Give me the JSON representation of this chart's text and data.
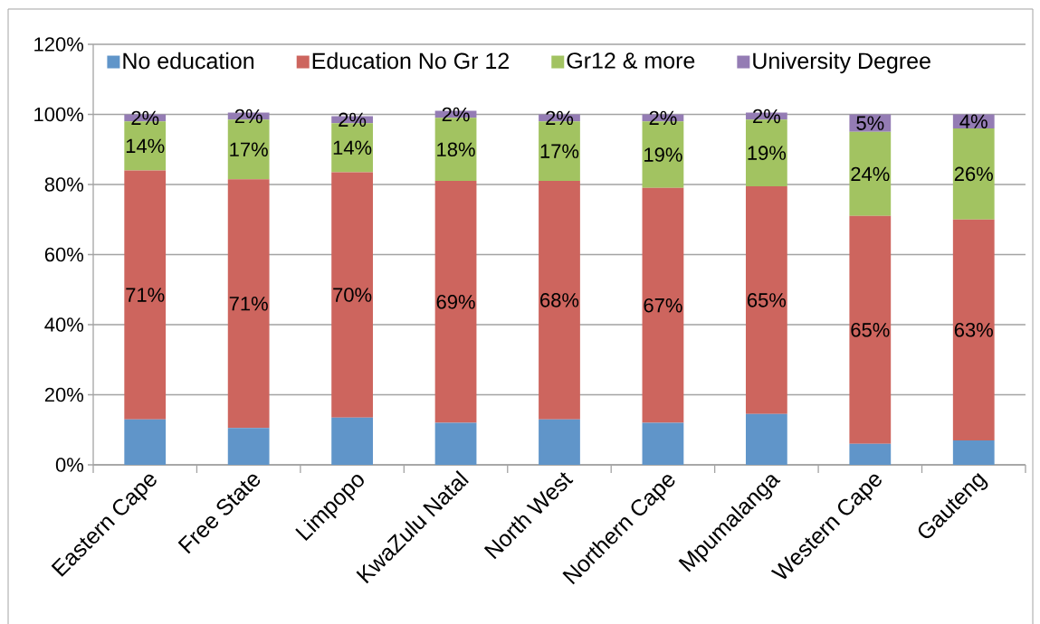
{
  "chart_data": {
    "type": "bar",
    "stacked": true,
    "categories": [
      "Eastern Cape",
      "Free State",
      "Limpopo",
      "KwaZulu Natal",
      "North West",
      "Northern Cape",
      "Mpumalanga",
      "Western Cape",
      "Gauteng"
    ],
    "series": [
      {
        "name": "No education",
        "color": "#6095c9",
        "values": [
          13,
          10.5,
          13.5,
          12,
          13,
          12,
          14.5,
          6,
          7
        ]
      },
      {
        "name": "Education No Gr 12",
        "color": "#cd655e",
        "values": [
          71,
          71,
          70,
          69,
          68,
          67,
          65,
          65,
          63
        ],
        "value_labels": [
          "71%",
          "71%",
          "70%",
          "69%",
          "68%",
          "67%",
          "65%",
          "65%",
          "63%"
        ]
      },
      {
        "name": "Gr12 & more",
        "color": "#a2c361",
        "values": [
          14,
          17,
          14,
          18,
          17,
          19,
          19,
          24,
          26
        ],
        "value_labels": [
          "14%",
          "17%",
          "14%",
          "18%",
          "17%",
          "19%",
          "19%",
          "24%",
          "26%"
        ]
      },
      {
        "name": "University Degree",
        "color": "#947cb4",
        "values": [
          2,
          2,
          2,
          2,
          2,
          2,
          2,
          5,
          4
        ],
        "value_labels": [
          "2%",
          "2%",
          "2%",
          "2%",
          "2%",
          "2%",
          "2%",
          "5%",
          "4%"
        ]
      }
    ],
    "ylim": [
      0,
      120
    ],
    "yticks": [
      {
        "value": 0,
        "label": "0%"
      },
      {
        "value": 20,
        "label": "20%"
      },
      {
        "value": 40,
        "label": "40%"
      },
      {
        "value": 60,
        "label": "60%"
      },
      {
        "value": 80,
        "label": "80%"
      },
      {
        "value": 100,
        "label": "100%"
      },
      {
        "value": 120,
        "label": "120%"
      }
    ],
    "grid": "y",
    "legend": "top"
  }
}
